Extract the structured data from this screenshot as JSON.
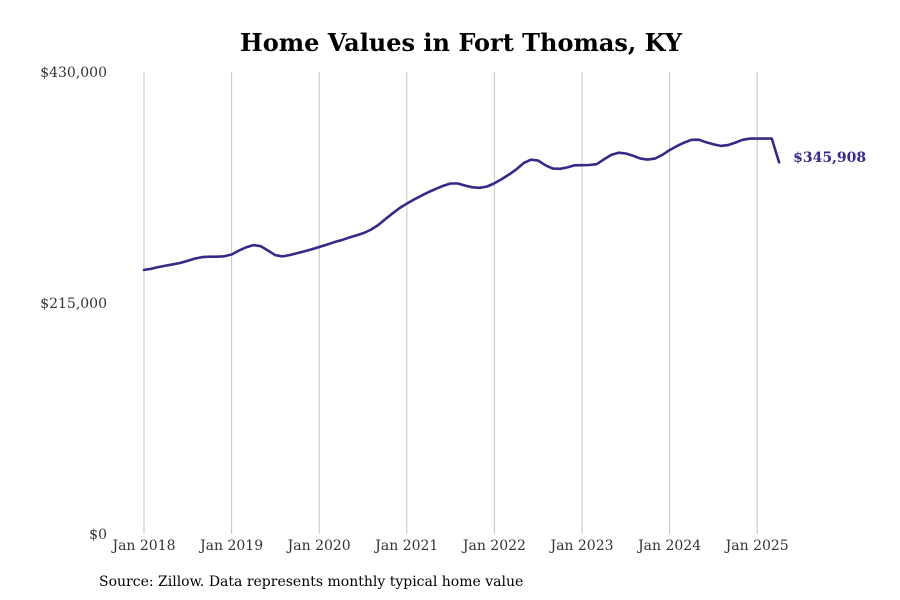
{
  "chart_data": {
    "type": "line",
    "title": "Home Values in Fort Thomas, KY",
    "xlabel": "",
    "ylabel": "",
    "ylim": [
      0,
      430000
    ],
    "y_ticks": [
      0,
      215000,
      430000
    ],
    "y_tick_labels": [
      "$0",
      "$215,000",
      "$430,000"
    ],
    "x_tick_labels": [
      "Jan 2018",
      "Jan 2019",
      "Jan 2020",
      "Jan 2021",
      "Jan 2022",
      "Jan 2023",
      "Jan 2024",
      "Jan 2025"
    ],
    "x_ticks": [
      "2018-01",
      "2019-01",
      "2020-01",
      "2021-01",
      "2022-01",
      "2023-01",
      "2024-01",
      "2025-01"
    ],
    "grid": "vertical",
    "line_color": "#352a87",
    "end_label": "$345,908",
    "series": [
      {
        "x": [
          "2018-01",
          "2018-02",
          "2018-03",
          "2018-04",
          "2018-05",
          "2018-06",
          "2018-07",
          "2018-08",
          "2018-09",
          "2018-10",
          "2018-11",
          "2018-12",
          "2019-01",
          "2019-02",
          "2019-03",
          "2019-04",
          "2019-05",
          "2019-06",
          "2019-07",
          "2019-08",
          "2019-09",
          "2019-10",
          "2019-11",
          "2019-12",
          "2020-01",
          "2020-02",
          "2020-03",
          "2020-04",
          "2020-05",
          "2020-06",
          "2020-07",
          "2020-08",
          "2020-09",
          "2020-10",
          "2020-11",
          "2020-12",
          "2021-01",
          "2021-02",
          "2021-03",
          "2021-04",
          "2021-05",
          "2021-06",
          "2021-07",
          "2021-08",
          "2021-09",
          "2021-10",
          "2021-11",
          "2021-12",
          "2022-01",
          "2022-02",
          "2022-03",
          "2022-04",
          "2022-05",
          "2022-06",
          "2022-07",
          "2022-08",
          "2022-09",
          "2022-10",
          "2022-11",
          "2022-12",
          "2023-01",
          "2023-02",
          "2023-03",
          "2023-04",
          "2023-05",
          "2023-06",
          "2023-07",
          "2023-08",
          "2023-09",
          "2023-10",
          "2023-11",
          "2023-12",
          "2024-01",
          "2024-02",
          "2024-03",
          "2024-04",
          "2024-05",
          "2024-06",
          "2024-07",
          "2024-08",
          "2024-09",
          "2024-10",
          "2024-11",
          "2024-12",
          "2025-01",
          "2025-02",
          "2025-03",
          "2025-04"
        ],
        "values": [
          245800,
          246800,
          248500,
          249800,
          251000,
          252300,
          254300,
          256400,
          257700,
          258100,
          258100,
          258500,
          260100,
          263800,
          266800,
          268900,
          267900,
          263800,
          259500,
          258400,
          259700,
          261400,
          263100,
          265000,
          267100,
          269300,
          271500,
          273400,
          275700,
          277700,
          279900,
          282900,
          287100,
          292700,
          298100,
          303300,
          307500,
          311300,
          314900,
          318300,
          321300,
          324100,
          326200,
          326200,
          324300,
          322700,
          322200,
          323400,
          326400,
          330300,
          334600,
          339300,
          345200,
          348400,
          347500,
          343200,
          340100,
          339900,
          341200,
          343200,
          343300,
          343400,
          344200,
          348700,
          352800,
          354900,
          354100,
          352100,
          349400,
          348500,
          349400,
          352800,
          357300,
          361000,
          364300,
          366900,
          367000,
          364600,
          362700,
          361200,
          362000,
          364300,
          366900,
          368000,
          368000,
          368000,
          368000,
          345908
        ]
      }
    ]
  },
  "source_text": "Source: Zillow. Data represents monthly typical home value"
}
